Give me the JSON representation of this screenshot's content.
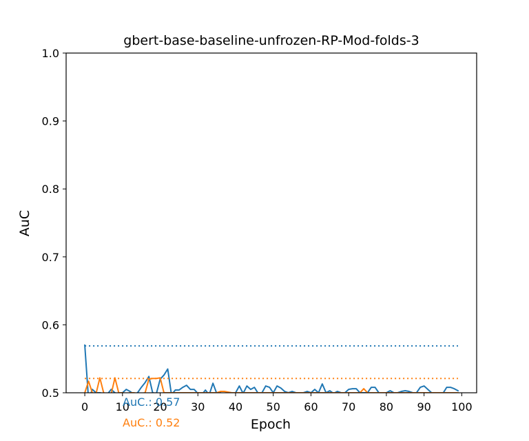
{
  "chart_data": {
    "type": "line",
    "title": "gbert-base-baseline-unfrozen-RP-Mod-folds-3",
    "xlabel": "Epoch",
    "ylabel": "AuC",
    "xlim": [
      -4.95,
      103.95
    ],
    "ylim": [
      0.5,
      1.0
    ],
    "xticks": [
      0,
      10,
      20,
      30,
      40,
      50,
      60,
      70,
      80,
      90,
      100
    ],
    "yticks": [
      0.5,
      0.6,
      0.7,
      0.8,
      0.9,
      1.0
    ],
    "grid": false,
    "colors": {
      "series0": "#1f77b4",
      "series1": "#ff7f0e"
    },
    "series": [
      {
        "x": [
          0,
          1,
          2,
          3,
          4,
          5,
          6,
          7,
          8,
          9,
          10,
          11,
          12,
          13,
          14,
          15,
          16,
          17,
          18,
          19,
          20,
          21,
          22,
          23,
          24,
          25,
          26,
          27,
          28,
          29,
          30,
          31,
          32,
          33,
          34,
          35,
          36,
          37,
          38,
          39,
          40,
          41,
          42,
          43,
          44,
          45,
          46,
          47,
          48,
          49,
          50,
          51,
          52,
          53,
          54,
          55,
          56,
          57,
          58,
          59,
          60,
          61,
          62,
          63,
          64,
          65,
          66,
          67,
          68,
          69,
          70,
          71,
          72,
          73,
          74,
          75,
          76,
          77,
          78,
          79,
          80,
          81,
          82,
          83,
          84,
          85,
          86,
          87,
          88,
          89,
          90,
          91,
          92,
          93,
          94,
          95,
          96,
          97,
          98,
          99
        ],
        "values": [
          0.57,
          0.49,
          0.505,
          0.5,
          0.5,
          0.499,
          0.498,
          0.505,
          0.5,
          0.497,
          0.5,
          0.505,
          0.502,
          0.498,
          0.5,
          0.508,
          0.515,
          0.524,
          0.5,
          0.499,
          0.52,
          0.526,
          0.535,
          0.497,
          0.504,
          0.504,
          0.508,
          0.511,
          0.505,
          0.505,
          0.499,
          0.497,
          0.504,
          0.497,
          0.514,
          0.499,
          0.5,
          0.497,
          0.5,
          0.499,
          0.5,
          0.51,
          0.499,
          0.51,
          0.505,
          0.508,
          0.499,
          0.5,
          0.51,
          0.508,
          0.5,
          0.51,
          0.507,
          0.502,
          0.5,
          0.502,
          0.5,
          0.5,
          0.5,
          0.502,
          0.5,
          0.505,
          0.5,
          0.513,
          0.5,
          0.503,
          0.499,
          0.502,
          0.5,
          0.5,
          0.505,
          0.506,
          0.506,
          0.5,
          0.5,
          0.5,
          0.508,
          0.508,
          0.5,
          0.5,
          0.5,
          0.503,
          0.5,
          0.5,
          0.502,
          0.503,
          0.502,
          0.5,
          0.5,
          0.508,
          0.51,
          0.505,
          0.5,
          0.5,
          0.5,
          0.499,
          0.508,
          0.508,
          0.506,
          0.503
        ],
        "hline": 0.569
      },
      {
        "x": [
          0,
          1,
          2,
          3,
          4,
          5,
          6,
          7,
          8,
          9,
          10,
          11,
          12,
          13,
          14,
          15,
          16,
          17,
          18,
          19,
          20,
          21,
          22,
          23,
          24,
          25,
          26,
          27,
          28,
          29,
          30,
          31,
          32,
          33,
          34,
          35,
          36,
          37,
          38,
          39,
          40,
          41,
          42,
          43,
          44,
          45,
          46,
          47,
          48,
          49,
          50,
          51,
          52,
          53,
          54,
          55,
          56,
          57,
          58,
          59,
          60,
          61,
          62,
          63,
          64,
          65,
          66,
          67,
          68,
          69,
          70,
          71,
          72,
          73,
          74,
          75,
          76,
          77,
          78,
          79,
          80,
          81,
          82,
          83,
          84,
          85,
          86,
          87,
          88,
          89,
          90,
          91,
          92,
          93,
          94,
          95,
          96,
          97,
          98,
          99
        ],
        "values": [
          0.5,
          0.517,
          0.5,
          0.499,
          0.522,
          0.5,
          0.498,
          0.498,
          0.522,
          0.5,
          0.5,
          0.499,
          0.5,
          0.5,
          0.499,
          0.499,
          0.5,
          0.52,
          0.521,
          0.521,
          0.522,
          0.5,
          0.5,
          0.5,
          0.5,
          0.5,
          0.5,
          0.5,
          0.5,
          0.5,
          0.5,
          0.5,
          0.5,
          0.5,
          0.5,
          0.5,
          0.502,
          0.502,
          0.501,
          0.5,
          0.5,
          0.5,
          0.5,
          0.5,
          0.5,
          0.5,
          0.5,
          0.5,
          0.5,
          0.5,
          0.5,
          0.5,
          0.5,
          0.5,
          0.5,
          0.5,
          0.5,
          0.5,
          0.5,
          0.5,
          0.5,
          0.5,
          0.5,
          0.5,
          0.5,
          0.5,
          0.5,
          0.5,
          0.5,
          0.5,
          0.5,
          0.5,
          0.5,
          0.5,
          0.506,
          0.5,
          0.5,
          0.5,
          0.5,
          0.5,
          0.5,
          0.5,
          0.5,
          0.5,
          0.5,
          0.5,
          0.5,
          0.5,
          0.5,
          0.5,
          0.5,
          0.5,
          0.5,
          0.5,
          0.5,
          0.5,
          0.5,
          0.5,
          0.5,
          0.5
        ],
        "hline": 0.521
      }
    ],
    "annotations": [
      {
        "text": "AuC.: 0.57",
        "color": "#1f77b4"
      },
      {
        "text": "AuC.: 0.52",
        "color": "#ff7f0e"
      }
    ]
  }
}
